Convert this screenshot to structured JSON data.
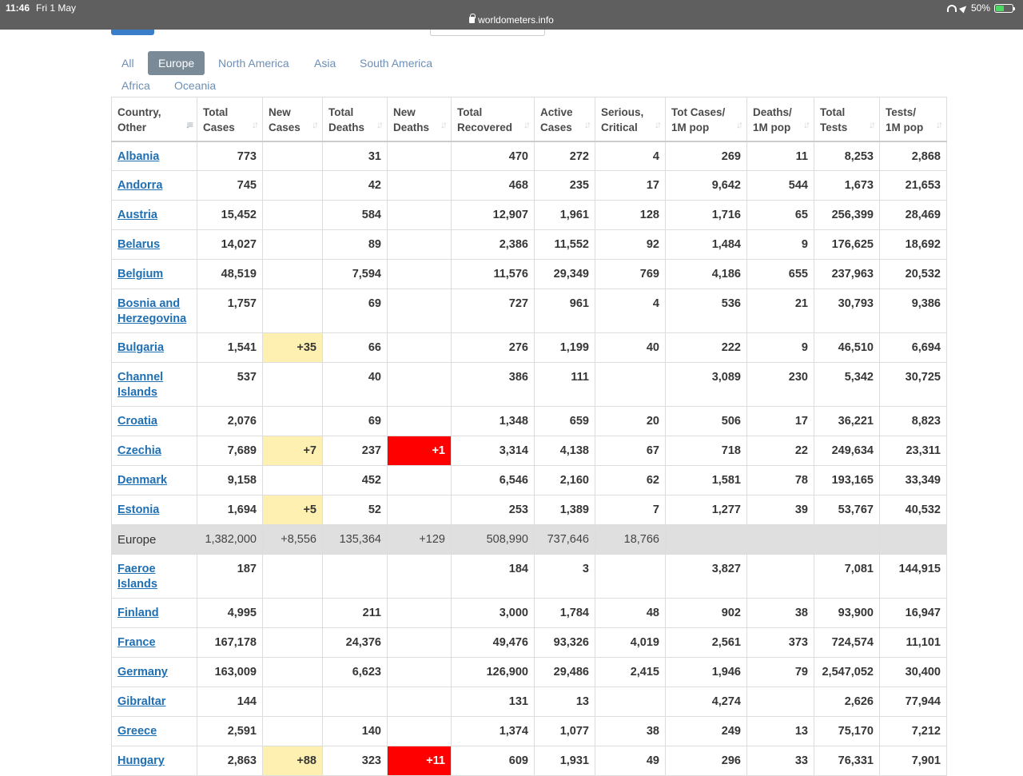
{
  "status_bar": {
    "time": "11:46",
    "date": "Fri 1 May",
    "url": "worldometers.info",
    "battery": "50%",
    "battery_level": 0.5
  },
  "tabs": [
    {
      "label": "All",
      "active": false
    },
    {
      "label": "Europe",
      "active": true
    },
    {
      "label": "North America",
      "active": false
    },
    {
      "label": "Asia",
      "active": false
    },
    {
      "label": "South America",
      "active": false
    },
    {
      "label": "Africa",
      "active": false
    },
    {
      "label": "Oceania",
      "active": false
    }
  ],
  "table": {
    "headers": [
      {
        "line1": "Country,",
        "line2": "Other"
      },
      {
        "line1": "Total",
        "line2": "Cases"
      },
      {
        "line1": "New",
        "line2": "Cases"
      },
      {
        "line1": "Total",
        "line2": "Deaths"
      },
      {
        "line1": "New",
        "line2": "Deaths"
      },
      {
        "line1": "Total",
        "line2": "Recovered"
      },
      {
        "line1": "Active",
        "line2": "Cases"
      },
      {
        "line1": "Serious,",
        "line2": "Critical"
      },
      {
        "line1": "Tot Cases/",
        "line2": "1M pop"
      },
      {
        "line1": "Deaths/",
        "line2": "1M pop"
      },
      {
        "line1": "Total",
        "line2": "Tests"
      },
      {
        "line1": "Tests/",
        "line2": "1M pop"
      }
    ],
    "rows": [
      {
        "country": [
          "Albania"
        ],
        "total_cases": "773",
        "new_cases": "",
        "total_deaths": "31",
        "new_deaths": "",
        "total_recovered": "470",
        "active_cases": "272",
        "serious": "4",
        "cases_per_1m": "269",
        "deaths_per_1m": "11",
        "total_tests": "8,253",
        "tests_per_1m": "2,868"
      },
      {
        "country": [
          "Andorra"
        ],
        "total_cases": "745",
        "new_cases": "",
        "total_deaths": "42",
        "new_deaths": "",
        "total_recovered": "468",
        "active_cases": "235",
        "serious": "17",
        "cases_per_1m": "9,642",
        "deaths_per_1m": "544",
        "total_tests": "1,673",
        "tests_per_1m": "21,653"
      },
      {
        "country": [
          "Austria"
        ],
        "total_cases": "15,452",
        "new_cases": "",
        "total_deaths": "584",
        "new_deaths": "",
        "total_recovered": "12,907",
        "active_cases": "1,961",
        "serious": "128",
        "cases_per_1m": "1,716",
        "deaths_per_1m": "65",
        "total_tests": "256,399",
        "tests_per_1m": "28,469"
      },
      {
        "country": [
          "Belarus"
        ],
        "total_cases": "14,027",
        "new_cases": "",
        "total_deaths": "89",
        "new_deaths": "",
        "total_recovered": "2,386",
        "active_cases": "11,552",
        "serious": "92",
        "cases_per_1m": "1,484",
        "deaths_per_1m": "9",
        "total_tests": "176,625",
        "tests_per_1m": "18,692"
      },
      {
        "country": [
          "Belgium"
        ],
        "total_cases": "48,519",
        "new_cases": "",
        "total_deaths": "7,594",
        "new_deaths": "",
        "total_recovered": "11,576",
        "active_cases": "29,349",
        "serious": "769",
        "cases_per_1m": "4,186",
        "deaths_per_1m": "655",
        "total_tests": "237,963",
        "tests_per_1m": "20,532"
      },
      {
        "country": [
          "Bosnia and",
          "Herzegovina"
        ],
        "total_cases": "1,757",
        "new_cases": "",
        "total_deaths": "69",
        "new_deaths": "",
        "total_recovered": "727",
        "active_cases": "961",
        "serious": "4",
        "cases_per_1m": "536",
        "deaths_per_1m": "21",
        "total_tests": "30,793",
        "tests_per_1m": "9,386"
      },
      {
        "country": [
          "Bulgaria"
        ],
        "total_cases": "1,541",
        "new_cases": "+35",
        "total_deaths": "66",
        "new_deaths": "",
        "total_recovered": "276",
        "active_cases": "1,199",
        "serious": "40",
        "cases_per_1m": "222",
        "deaths_per_1m": "9",
        "total_tests": "46,510",
        "tests_per_1m": "6,694"
      },
      {
        "country": [
          "Channel",
          "Islands"
        ],
        "total_cases": "537",
        "new_cases": "",
        "total_deaths": "40",
        "new_deaths": "",
        "total_recovered": "386",
        "active_cases": "111",
        "serious": "",
        "cases_per_1m": "3,089",
        "deaths_per_1m": "230",
        "total_tests": "5,342",
        "tests_per_1m": "30,725"
      },
      {
        "country": [
          "Croatia"
        ],
        "total_cases": "2,076",
        "new_cases": "",
        "total_deaths": "69",
        "new_deaths": "",
        "total_recovered": "1,348",
        "active_cases": "659",
        "serious": "20",
        "cases_per_1m": "506",
        "deaths_per_1m": "17",
        "total_tests": "36,221",
        "tests_per_1m": "8,823"
      },
      {
        "country": [
          "Czechia"
        ],
        "total_cases": "7,689",
        "new_cases": "+7",
        "total_deaths": "237",
        "new_deaths": "+1",
        "total_recovered": "3,314",
        "active_cases": "4,138",
        "serious": "67",
        "cases_per_1m": "718",
        "deaths_per_1m": "22",
        "total_tests": "249,634",
        "tests_per_1m": "23,311"
      },
      {
        "country": [
          "Denmark"
        ],
        "total_cases": "9,158",
        "new_cases": "",
        "total_deaths": "452",
        "new_deaths": "",
        "total_recovered": "6,546",
        "active_cases": "2,160",
        "serious": "62",
        "cases_per_1m": "1,581",
        "deaths_per_1m": "78",
        "total_tests": "193,165",
        "tests_per_1m": "33,349"
      },
      {
        "country": [
          "Estonia"
        ],
        "total_cases": "1,694",
        "new_cases": "+5",
        "total_deaths": "52",
        "new_deaths": "",
        "total_recovered": "253",
        "active_cases": "1,389",
        "serious": "7",
        "cases_per_1m": "1,277",
        "deaths_per_1m": "39",
        "total_tests": "53,767",
        "tests_per_1m": "40,532"
      },
      {
        "country": [
          "Europe"
        ],
        "is_total": true,
        "total_cases": "1,382,000",
        "new_cases": "+8,556",
        "total_deaths": "135,364",
        "new_deaths": "+129",
        "total_recovered": "508,990",
        "active_cases": "737,646",
        "serious": "18,766",
        "cases_per_1m": "",
        "deaths_per_1m": "",
        "total_tests": "",
        "tests_per_1m": ""
      },
      {
        "country": [
          "Faeroe",
          "Islands"
        ],
        "total_cases": "187",
        "new_cases": "",
        "total_deaths": "",
        "new_deaths": "",
        "total_recovered": "184",
        "active_cases": "3",
        "serious": "",
        "cases_per_1m": "3,827",
        "deaths_per_1m": "",
        "total_tests": "7,081",
        "tests_per_1m": "144,915"
      },
      {
        "country": [
          "Finland"
        ],
        "total_cases": "4,995",
        "new_cases": "",
        "total_deaths": "211",
        "new_deaths": "",
        "total_recovered": "3,000",
        "active_cases": "1,784",
        "serious": "48",
        "cases_per_1m": "902",
        "deaths_per_1m": "38",
        "total_tests": "93,900",
        "tests_per_1m": "16,947"
      },
      {
        "country": [
          "France"
        ],
        "total_cases": "167,178",
        "new_cases": "",
        "total_deaths": "24,376",
        "new_deaths": "",
        "total_recovered": "49,476",
        "active_cases": "93,326",
        "serious": "4,019",
        "cases_per_1m": "2,561",
        "deaths_per_1m": "373",
        "total_tests": "724,574",
        "tests_per_1m": "11,101"
      },
      {
        "country": [
          "Germany"
        ],
        "total_cases": "163,009",
        "new_cases": "",
        "total_deaths": "6,623",
        "new_deaths": "",
        "total_recovered": "126,900",
        "active_cases": "29,486",
        "serious": "2,415",
        "cases_per_1m": "1,946",
        "deaths_per_1m": "79",
        "total_tests": "2,547,052",
        "tests_per_1m": "30,400"
      },
      {
        "country": [
          "Gibraltar"
        ],
        "total_cases": "144",
        "new_cases": "",
        "total_deaths": "",
        "new_deaths": "",
        "total_recovered": "131",
        "active_cases": "13",
        "serious": "",
        "cases_per_1m": "4,274",
        "deaths_per_1m": "",
        "total_tests": "2,626",
        "tests_per_1m": "77,944"
      },
      {
        "country": [
          "Greece"
        ],
        "total_cases": "2,591",
        "new_cases": "",
        "total_deaths": "140",
        "new_deaths": "",
        "total_recovered": "1,374",
        "active_cases": "1,077",
        "serious": "38",
        "cases_per_1m": "249",
        "deaths_per_1m": "13",
        "total_tests": "75,170",
        "tests_per_1m": "7,212"
      },
      {
        "country": [
          "Hungary"
        ],
        "total_cases": "2,863",
        "new_cases": "+88",
        "total_deaths": "323",
        "new_deaths": "+11",
        "total_recovered": "609",
        "active_cases": "1,931",
        "serious": "49",
        "cases_per_1m": "296",
        "deaths_per_1m": "33",
        "total_tests": "76,331",
        "tests_per_1m": "7,901"
      }
    ]
  },
  "colors": {
    "new_cases_highlight": "#fdf0b0",
    "new_deaths_highlight": "#ff0000",
    "link": "#1f6fb3",
    "active_tab": "#7b8a97",
    "tab_text": "#6d8fb5",
    "total_row": "#dfdfdf"
  }
}
